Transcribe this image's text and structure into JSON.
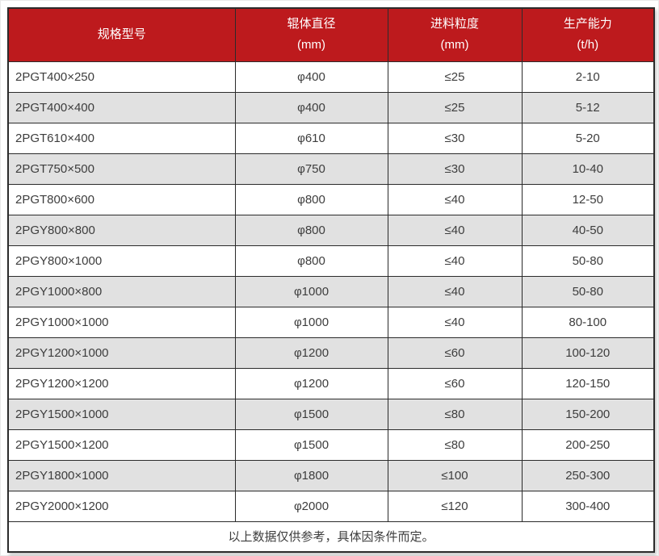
{
  "chart_data": {
    "type": "table",
    "columns": [
      {
        "label": "规格型号",
        "unit": ""
      },
      {
        "label": "辊体直径",
        "unit": "(mm)"
      },
      {
        "label": "进料粒度",
        "unit": "(mm)"
      },
      {
        "label": "生产能力",
        "unit": "(t/h)"
      }
    ],
    "rows": [
      [
        "2PGT400×250",
        "φ400",
        "≤25",
        "2-10"
      ],
      [
        "2PGT400×400",
        "φ400",
        "≤25",
        "5-12"
      ],
      [
        "2PGT610×400",
        "φ610",
        "≤30",
        "5-20"
      ],
      [
        "2PGT750×500",
        "φ750",
        "≤30",
        "10-40"
      ],
      [
        "2PGT800×600",
        "φ800",
        "≤40",
        "12-50"
      ],
      [
        "2PGY800×800",
        "φ800",
        "≤40",
        "40-50"
      ],
      [
        "2PGY800×1000",
        "φ800",
        "≤40",
        "50-80"
      ],
      [
        "2PGY1000×800",
        "φ1000",
        "≤40",
        "50-80"
      ],
      [
        "2PGY1000×1000",
        "φ1000",
        "≤40",
        "80-100"
      ],
      [
        "2PGY1200×1000",
        "φ1200",
        "≤60",
        "100-120"
      ],
      [
        "2PGY1200×1200",
        "φ1200",
        "≤60",
        "120-150"
      ],
      [
        "2PGY1500×1000",
        "φ1500",
        "≤80",
        "150-200"
      ],
      [
        "2PGY1500×1200",
        "φ1500",
        "≤80",
        "200-250"
      ],
      [
        "2PGY1800×1000",
        "φ1800",
        "≤100",
        "250-300"
      ],
      [
        "2PGY2000×1200",
        "φ2000",
        "≤120",
        "300-400"
      ]
    ],
    "footnote": "以上数据仅供参考，具体因条件而定。",
    "layout": {
      "zebra_striping": true,
      "first_column_align": "left",
      "other_columns_align": "center"
    }
  },
  "colors": {
    "header_bg": "#bd1a1d",
    "header_text": "#ffffff",
    "row_bg": "#ffffff",
    "row_alt_bg": "#e1e1e1",
    "border": "#2b2b2b",
    "text": "#3d3d3d"
  }
}
